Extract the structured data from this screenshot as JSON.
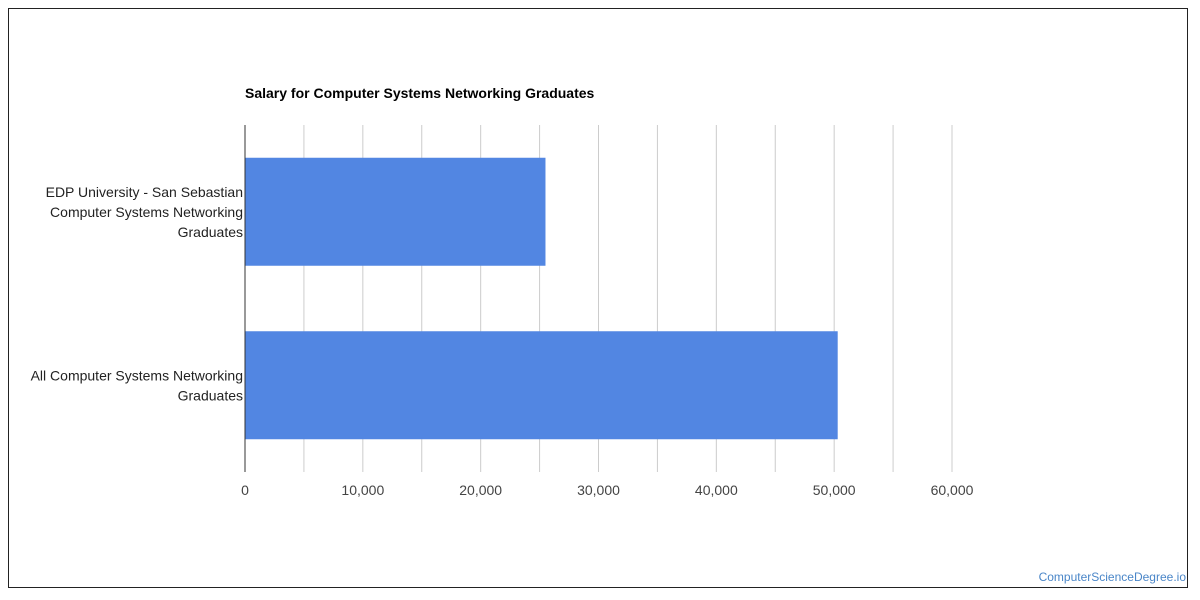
{
  "chart_data": {
    "type": "bar",
    "orientation": "horizontal",
    "title": "Salary for Computer Systems Networking Graduates",
    "xlabel": "",
    "ylabel": "",
    "categories": [
      [
        "EDP University - San Sebastian",
        "Computer Systems Networking",
        "Graduates"
      ],
      [
        "All Computer Systems Networking",
        "Graduates"
      ]
    ],
    "values": [
      25500,
      50300
    ],
    "xlim": [
      0,
      60000
    ],
    "xticks": [
      "0",
      "10,000",
      "20,000",
      "30,000",
      "40,000",
      "50,000",
      "60,000"
    ],
    "grid": true,
    "legend": "none",
    "bar_color": "#5286e2"
  },
  "footer": {
    "watermark": "ComputerScienceDegree.io"
  }
}
